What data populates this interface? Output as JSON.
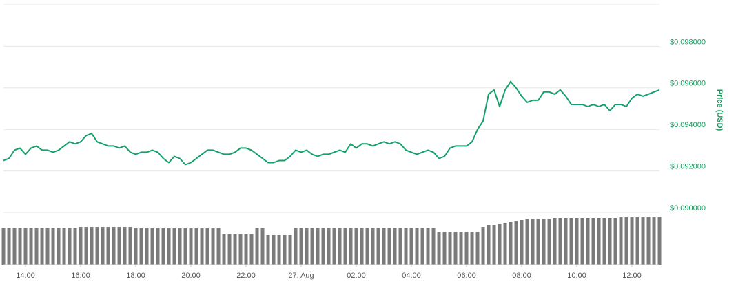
{
  "chart_data": {
    "type": "line",
    "x": [
      13.2,
      13.4,
      13.6,
      13.8,
      14,
      14.2,
      14.4,
      14.6,
      14.8,
      15,
      15.2,
      15.4,
      15.6,
      15.8,
      16,
      16.2,
      16.4,
      16.6,
      16.8,
      17,
      17.2,
      17.4,
      17.6,
      17.8,
      18,
      18.2,
      18.4,
      18.6,
      18.8,
      19,
      19.2,
      19.4,
      19.6,
      19.8,
      20,
      20.2,
      20.4,
      20.6,
      20.8,
      21,
      21.2,
      21.4,
      21.6,
      21.8,
      22,
      22.2,
      22.4,
      22.6,
      22.8,
      23,
      23.2,
      23.4,
      23.6,
      23.8,
      24,
      24.2,
      24.4,
      24.6,
      24.8,
      25,
      25.2,
      25.4,
      25.6,
      25.8,
      26,
      26.2,
      26.4,
      26.6,
      26.8,
      27,
      27.2,
      27.4,
      27.6,
      27.8,
      28,
      28.2,
      28.4,
      28.6,
      28.8,
      29,
      29.2,
      29.4,
      29.6,
      29.8,
      30,
      30.2,
      30.4,
      30.6,
      30.8,
      31,
      31.2,
      31.4,
      31.6,
      31.8,
      32,
      32.2,
      32.4,
      32.6,
      32.8,
      33,
      33.2,
      33.4,
      33.6,
      33.8,
      34,
      34.2,
      34.4,
      34.6,
      34.8,
      35,
      35.2,
      35.4,
      35.6,
      35.8,
      36,
      36.2,
      36.4,
      36.6,
      36.8,
      37
    ],
    "series": [
      {
        "color": "#14a06a",
        "values": [
          0.0925,
          0.0926,
          0.093,
          0.0931,
          0.0928,
          0.0931,
          0.0932,
          0.093,
          0.093,
          0.0929,
          0.093,
          0.0932,
          0.0934,
          0.0933,
          0.0934,
          0.0937,
          0.0938,
          0.0934,
          0.0933,
          0.0932,
          0.0932,
          0.0931,
          0.0932,
          0.0929,
          0.0928,
          0.0929,
          0.0929,
          0.093,
          0.0929,
          0.0926,
          0.0924,
          0.0927,
          0.0926,
          0.0923,
          0.0924,
          0.0926,
          0.0928,
          0.093,
          0.093,
          0.0929,
          0.0928,
          0.0928,
          0.0929,
          0.0931,
          0.0931,
          0.093,
          0.0928,
          0.0926,
          0.0924,
          0.0924,
          0.0925,
          0.0925,
          0.0927,
          0.093,
          0.0929,
          0.093,
          0.0928,
          0.0927,
          0.0928,
          0.0928,
          0.0929,
          0.093,
          0.0929,
          0.0933,
          0.0931,
          0.0933,
          0.0933,
          0.0932,
          0.0933,
          0.0934,
          0.0933,
          0.0934,
          0.0933,
          0.093,
          0.0929,
          0.0928,
          0.0929,
          0.093,
          0.0929,
          0.0926,
          0.0927,
          0.0931,
          0.0932,
          0.0932,
          0.0932,
          0.0934,
          0.094,
          0.0944,
          0.0957,
          0.0959,
          0.0951,
          0.0959,
          0.0963,
          0.096,
          0.0956,
          0.0953,
          0.0954,
          0.0954,
          0.0958,
          0.0958,
          0.0957,
          0.0959,
          0.0956,
          0.0952,
          0.0952,
          0.0952,
          0.0951,
          0.0952,
          0.0951,
          0.0952,
          0.0949,
          0.0952,
          0.0952,
          0.0951,
          0.0955,
          0.0957,
          0.0956,
          0.0957,
          0.0958,
          0.0959
        ]
      },
      {
        "color": "#7a7a7a",
        "axis": "y2",
        "values": [
          53,
          53,
          53,
          53,
          53,
          53,
          53,
          53,
          53,
          53,
          53,
          53,
          53,
          53,
          55,
          55,
          55,
          55,
          55,
          55,
          55,
          55,
          55,
          55,
          54,
          54,
          54,
          54,
          54,
          54,
          54,
          54,
          54,
          54,
          54,
          54,
          54,
          54,
          54,
          54,
          45,
          45,
          45,
          45,
          45,
          45,
          53,
          53,
          43,
          43,
          43,
          43,
          43,
          53,
          53,
          53,
          53,
          53,
          53,
          53,
          53,
          53,
          53,
          53,
          53,
          53,
          53,
          53,
          53,
          53,
          53,
          53,
          53,
          53,
          53,
          53,
          53,
          53,
          53,
          48,
          48,
          48,
          48,
          48,
          48,
          48,
          48,
          55,
          57,
          58,
          59,
          60,
          62,
          63,
          65,
          66,
          66,
          66,
          66,
          66,
          68,
          68,
          68,
          68,
          68,
          68,
          68,
          68,
          68,
          68,
          68,
          68,
          70,
          70,
          70,
          70,
          70,
          70,
          70,
          70
        ]
      }
    ],
    "xlim": [
      13.2,
      37
    ],
    "xticks": [
      {
        "value": 14,
        "label": "14:00"
      },
      {
        "value": 16,
        "label": "16:00"
      },
      {
        "value": 18,
        "label": "18:00"
      },
      {
        "value": 20,
        "label": "20:00"
      },
      {
        "value": 22,
        "label": "22:00"
      },
      {
        "value": 24,
        "label": "27. Aug"
      },
      {
        "value": 26,
        "label": "02:00"
      },
      {
        "value": 28,
        "label": "04:00"
      },
      {
        "value": 30,
        "label": "06:00"
      },
      {
        "value": 32,
        "label": "08:00"
      },
      {
        "value": 34,
        "label": "10:00"
      },
      {
        "value": 36,
        "label": "12:00"
      }
    ],
    "ylim": [
      0.09,
      0.1
    ],
    "yticks": [
      {
        "value": 0.09,
        "label": "$0.090000"
      },
      {
        "value": 0.092,
        "label": "$0.092000"
      },
      {
        "value": 0.094,
        "label": "$0.094000"
      },
      {
        "value": 0.096,
        "label": "$0.096000"
      },
      {
        "value": 0.098,
        "label": "$0.098000"
      }
    ],
    "y2lim": [
      0,
      75
    ],
    "ylabel": "Price (USD)",
    "grid": true
  }
}
